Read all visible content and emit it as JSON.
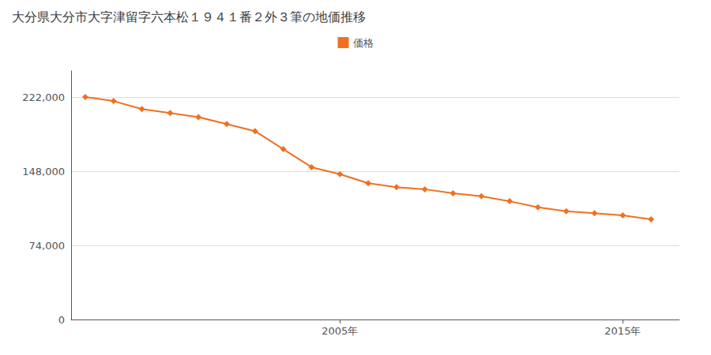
{
  "chart_data": {
    "type": "line",
    "title": "大分県大分市大字津留字六本松１９４１番２外３筆の地価推移",
    "x": [
      1996,
      1997,
      1998,
      1999,
      2000,
      2001,
      2002,
      2003,
      2004,
      2005,
      2006,
      2007,
      2008,
      2009,
      2010,
      2011,
      2012,
      2013,
      2014,
      2015,
      2016
    ],
    "series": [
      {
        "name": "価格",
        "color": "#f07020",
        "values": [
          222000,
          218000,
          210000,
          206000,
          202000,
          195000,
          188000,
          170000,
          152000,
          145000,
          136000,
          132000,
          130000,
          126000,
          123000,
          118000,
          112000,
          108000,
          106000,
          104000,
          100000
        ]
      }
    ],
    "xlim": [
      1995.5,
      2017
    ],
    "xticks": [
      {
        "value": 2005,
        "label": "2005年"
      },
      {
        "value": 2015,
        "label": "2015年"
      }
    ],
    "ylim": [
      0,
      248000
    ],
    "yticks": [
      0,
      {
        "value": 74000,
        "label": "74,000"
      },
      {
        "value": 148000,
        "label": "148,000"
      },
      {
        "value": 222000,
        "label": "222,000"
      }
    ],
    "grid": true,
    "legend": "top",
    "marker": "diamond"
  }
}
